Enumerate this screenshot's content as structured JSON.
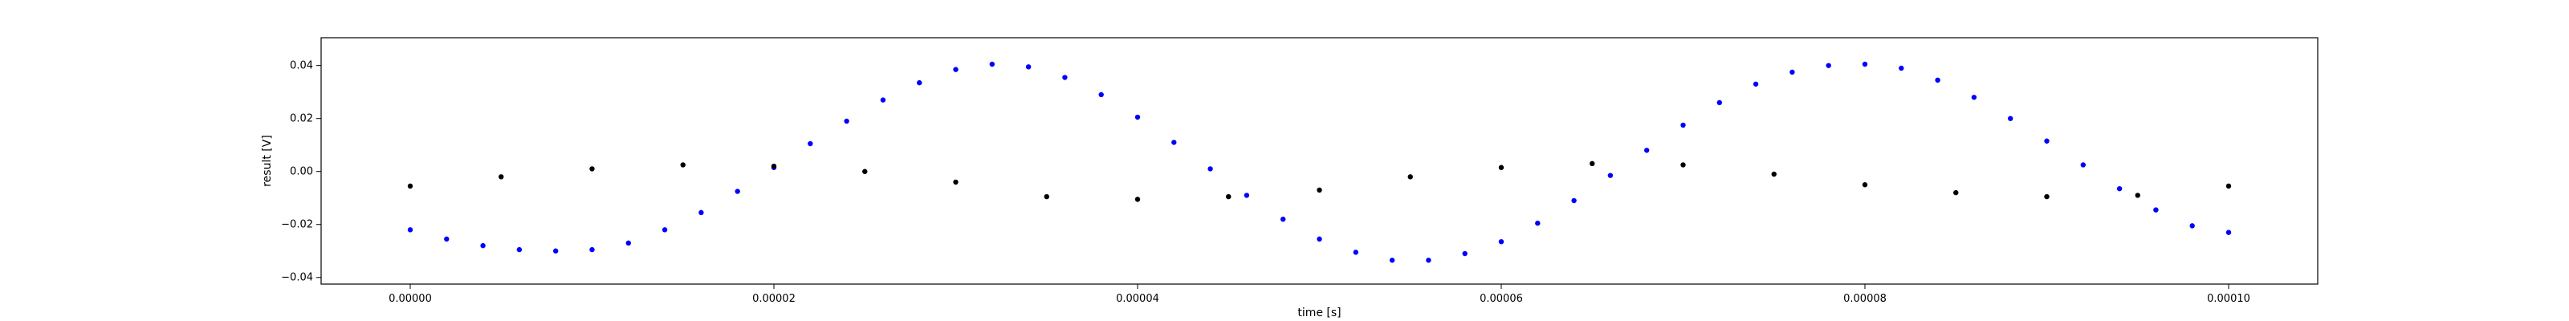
{
  "chart_data": {
    "type": "scatter",
    "title": "",
    "xlabel": "time [s]",
    "ylabel": "result [V]",
    "xlim": [
      -4.9e-06,
      0.0001049
    ],
    "ylim": [
      -0.0425,
      0.0505
    ],
    "grid": false,
    "legend": "none",
    "x_ticks": [
      {
        "value": 0.0,
        "label": "0.00000"
      },
      {
        "value": 2e-05,
        "label": "0.00002"
      },
      {
        "value": 4e-05,
        "label": "0.00004"
      },
      {
        "value": 6e-05,
        "label": "0.00006"
      },
      {
        "value": 8e-05,
        "label": "0.00008"
      },
      {
        "value": 0.0001,
        "label": "0.00010"
      }
    ],
    "y_ticks": [
      {
        "value": 0.04,
        "label": "0.04"
      },
      {
        "value": 0.02,
        "label": "0.02"
      },
      {
        "value": 0.0,
        "label": "0.00"
      },
      {
        "value": -0.02,
        "label": "−0.02"
      },
      {
        "value": -0.04,
        "label": "−0.04"
      }
    ],
    "series": [
      {
        "color": "#0000ff",
        "x": [
          0.0,
          2e-06,
          4e-06,
          6e-06,
          8e-06,
          1e-05,
          1.2e-05,
          1.4e-05,
          1.6e-05,
          1.8e-05,
          2e-05,
          2.2e-05,
          2.4e-05,
          2.6e-05,
          2.8e-05,
          3e-05,
          3.2e-05,
          3.4e-05,
          3.6e-05,
          3.8e-05,
          4e-05,
          4.2e-05,
          4.4e-05,
          4.6e-05,
          4.8e-05,
          5e-05,
          5.2e-05,
          5.4e-05,
          5.6e-05,
          5.8e-05,
          6e-05,
          6.2e-05,
          6.4e-05,
          6.6e-05,
          6.8e-05,
          7e-05,
          7.2e-05,
          7.4e-05,
          7.6e-05,
          7.8e-05,
          8e-05,
          8.2e-05,
          8.4e-05,
          8.6e-05,
          8.8e-05,
          9e-05,
          9.2e-05,
          9.4e-05,
          9.6e-05,
          9.8e-05,
          0.0001
        ],
        "y": [
          -0.022,
          -0.0255,
          -0.028,
          -0.0295,
          -0.03,
          -0.0295,
          -0.027,
          -0.022,
          -0.0155,
          -0.0075,
          0.0015,
          0.0105,
          0.019,
          0.027,
          0.0335,
          0.0385,
          0.0405,
          0.0395,
          0.0355,
          0.029,
          0.0205,
          0.011,
          0.001,
          -0.009,
          -0.018,
          -0.0255,
          -0.0305,
          -0.0335,
          -0.0335,
          -0.031,
          -0.0265,
          -0.0195,
          -0.011,
          -0.0015,
          0.008,
          0.0175,
          0.026,
          0.033,
          0.0375,
          0.04,
          0.0405,
          0.039,
          0.0345,
          0.028,
          0.02,
          0.0115,
          0.0025,
          -0.0065,
          -0.0145,
          -0.0205,
          -0.023
        ]
      },
      {
        "color": "#000000",
        "x": [
          0.0,
          5e-06,
          1e-05,
          1.5e-05,
          2e-05,
          2.5e-05,
          3e-05,
          3.5e-05,
          4e-05,
          4.5e-05,
          5e-05,
          5.5e-05,
          6e-05,
          6.5e-05,
          7e-05,
          7.5e-05,
          8e-05,
          8.5e-05,
          9e-05,
          9.5e-05,
          0.0001
        ],
        "y": [
          -0.0055,
          -0.002,
          0.001,
          0.0025,
          0.002,
          0.0,
          -0.004,
          -0.0095,
          -0.0105,
          -0.0095,
          -0.007,
          -0.002,
          0.0015,
          0.003,
          0.0025,
          -0.001,
          -0.005,
          -0.008,
          -0.0095,
          -0.009,
          -0.0055
        ]
      }
    ]
  }
}
